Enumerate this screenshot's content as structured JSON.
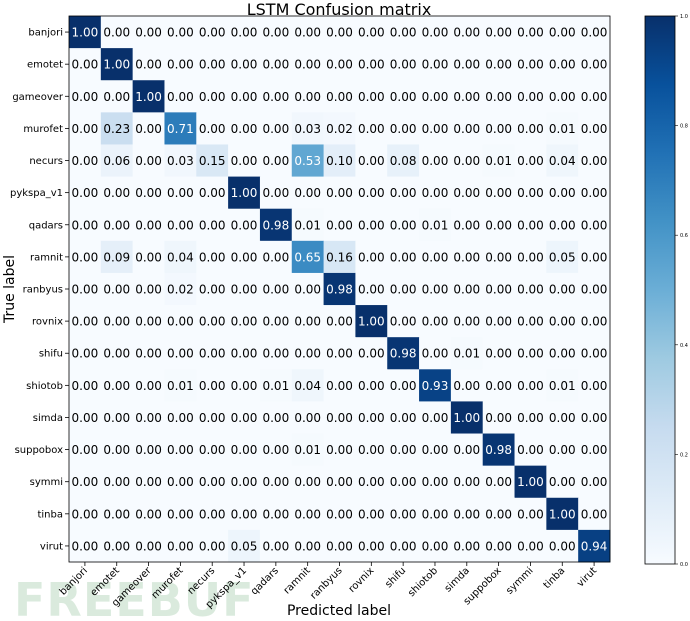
{
  "chart_data": {
    "type": "heatmap",
    "title": "LSTM Confusion matrix",
    "xlabel": "Predicted label",
    "ylabel": "True label",
    "labels": [
      "banjori",
      "emotet",
      "gameover",
      "murofet",
      "necurs",
      "pykspa_v1",
      "qadars",
      "ramnit",
      "ranbyus",
      "rovnix",
      "shifu",
      "shiotob",
      "simda",
      "suppobox",
      "symmi",
      "tinba",
      "virut"
    ],
    "matrix": [
      [
        1.0,
        0.0,
        0.0,
        0.0,
        0.0,
        0.0,
        0.0,
        0.0,
        0.0,
        0.0,
        0.0,
        0.0,
        0.0,
        0.0,
        0.0,
        0.0,
        0.0
      ],
      [
        0.0,
        1.0,
        0.0,
        0.0,
        0.0,
        0.0,
        0.0,
        0.0,
        0.0,
        0.0,
        0.0,
        0.0,
        0.0,
        0.0,
        0.0,
        0.0,
        0.0
      ],
      [
        0.0,
        0.0,
        1.0,
        0.0,
        0.0,
        0.0,
        0.0,
        0.0,
        0.0,
        0.0,
        0.0,
        0.0,
        0.0,
        0.0,
        0.0,
        0.0,
        0.0
      ],
      [
        0.0,
        0.23,
        0.0,
        0.71,
        0.0,
        0.0,
        0.0,
        0.03,
        0.02,
        0.0,
        0.0,
        0.0,
        0.0,
        0.0,
        0.0,
        0.01,
        0.0
      ],
      [
        0.0,
        0.06,
        0.0,
        0.03,
        0.15,
        0.0,
        0.0,
        0.53,
        0.1,
        0.0,
        0.08,
        0.0,
        0.0,
        0.01,
        0.0,
        0.04,
        0.0
      ],
      [
        0.0,
        0.0,
        0.0,
        0.0,
        0.0,
        1.0,
        0.0,
        0.0,
        0.0,
        0.0,
        0.0,
        0.0,
        0.0,
        0.0,
        0.0,
        0.0,
        0.0
      ],
      [
        0.0,
        0.0,
        0.0,
        0.0,
        0.0,
        0.0,
        0.98,
        0.01,
        0.0,
        0.0,
        0.0,
        0.01,
        0.0,
        0.0,
        0.0,
        0.0,
        0.0
      ],
      [
        0.0,
        0.09,
        0.0,
        0.04,
        0.0,
        0.0,
        0.0,
        0.65,
        0.16,
        0.0,
        0.0,
        0.0,
        0.0,
        0.0,
        0.0,
        0.05,
        0.0
      ],
      [
        0.0,
        0.0,
        0.0,
        0.02,
        0.0,
        0.0,
        0.0,
        0.0,
        0.98,
        0.0,
        0.0,
        0.0,
        0.0,
        0.0,
        0.0,
        0.0,
        0.0
      ],
      [
        0.0,
        0.0,
        0.0,
        0.0,
        0.0,
        0.0,
        0.0,
        0.0,
        0.0,
        1.0,
        0.0,
        0.0,
        0.0,
        0.0,
        0.0,
        0.0,
        0.0
      ],
      [
        0.0,
        0.0,
        0.0,
        0.0,
        0.0,
        0.0,
        0.0,
        0.0,
        0.0,
        0.0,
        0.98,
        0.0,
        0.01,
        0.0,
        0.0,
        0.0,
        0.0
      ],
      [
        0.0,
        0.0,
        0.0,
        0.01,
        0.0,
        0.0,
        0.01,
        0.04,
        0.0,
        0.0,
        0.0,
        0.93,
        0.0,
        0.0,
        0.0,
        0.01,
        0.0
      ],
      [
        0.0,
        0.0,
        0.0,
        0.0,
        0.0,
        0.0,
        0.0,
        0.0,
        0.0,
        0.0,
        0.0,
        0.0,
        1.0,
        0.0,
        0.0,
        0.0,
        0.0
      ],
      [
        0.0,
        0.0,
        0.0,
        0.0,
        0.0,
        0.0,
        0.0,
        0.01,
        0.0,
        0.0,
        0.0,
        0.0,
        0.0,
        0.98,
        0.0,
        0.0,
        0.0
      ],
      [
        0.0,
        0.0,
        0.0,
        0.0,
        0.0,
        0.0,
        0.0,
        0.0,
        0.0,
        0.0,
        0.0,
        0.0,
        0.0,
        0.0,
        1.0,
        0.0,
        0.0
      ],
      [
        0.0,
        0.0,
        0.0,
        0.0,
        0.0,
        0.0,
        0.0,
        0.0,
        0.0,
        0.0,
        0.0,
        0.0,
        0.0,
        0.0,
        0.0,
        1.0,
        0.0
      ],
      [
        0.0,
        0.0,
        0.0,
        0.0,
        0.0,
        0.05,
        0.0,
        0.0,
        0.0,
        0.0,
        0.0,
        0.0,
        0.0,
        0.0,
        0.0,
        0.0,
        0.94
      ]
    ],
    "colorbar": {
      "ticks": [
        "0.0",
        "0.2",
        "0.4",
        "0.6",
        "0.8",
        "1.0"
      ],
      "range": [
        0,
        1
      ],
      "colormap": "Blues",
      "low_color": "#f7fbff",
      "high_color": "#08306b"
    },
    "grid": false
  },
  "watermark": "FREEBUF"
}
